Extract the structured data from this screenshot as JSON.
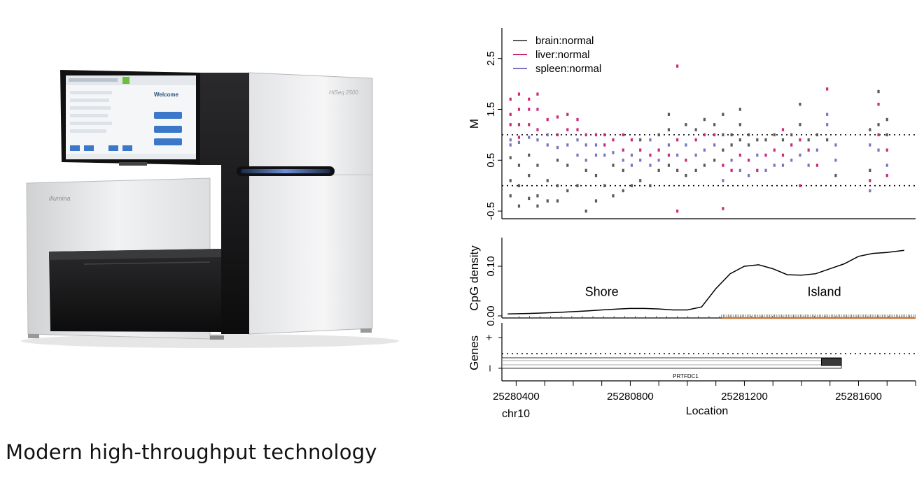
{
  "machine": {
    "brand": "illumina",
    "model": "HiSeq 2500",
    "screen_title": "Welcome"
  },
  "caption": "Modern high-throughput technology",
  "chart_data": [
    {
      "type": "scatter",
      "ylabel": "M",
      "xlim": [
        25280350,
        25281800
      ],
      "ylim": [
        -0.65,
        3.1
      ],
      "yticks": [
        "-0.5",
        "0.5",
        "1.5",
        "2.5"
      ],
      "ytick_values": [
        -0.5,
        0.5,
        1.5,
        2.5
      ],
      "hlines": [
        0.0,
        1.0
      ],
      "legend_position": "top-left",
      "series": [
        {
          "name": "brain:normal",
          "color": "#5a5a5a"
        },
        {
          "name": "liver:normal",
          "color": "#cc2a7a"
        },
        {
          "name": "spleen:normal",
          "color": "#7b74c0"
        }
      ],
      "points": [
        [
          25280380,
          -0.2,
          0
        ],
        [
          25280380,
          0.1,
          0
        ],
        [
          25280380,
          0.55,
          0
        ],
        [
          25280380,
          0.8,
          2
        ],
        [
          25280380,
          0.9,
          2
        ],
        [
          25280380,
          1.2,
          1
        ],
        [
          25280380,
          1.4,
          1
        ],
        [
          25280380,
          1.7,
          1
        ],
        [
          25280410,
          -0.4,
          0
        ],
        [
          25280410,
          0.0,
          0
        ],
        [
          25280410,
          0.4,
          0
        ],
        [
          25280410,
          0.85,
          2
        ],
        [
          25280410,
          0.95,
          1
        ],
        [
          25280410,
          1.2,
          1
        ],
        [
          25280410,
          1.5,
          1
        ],
        [
          25280410,
          1.8,
          1
        ],
        [
          25280445,
          -0.25,
          0
        ],
        [
          25280445,
          0.2,
          0
        ],
        [
          25280445,
          0.6,
          0
        ],
        [
          25280445,
          0.95,
          2
        ],
        [
          25280445,
          1.2,
          1
        ],
        [
          25280445,
          1.5,
          1
        ],
        [
          25280445,
          1.7,
          1
        ],
        [
          25280475,
          -0.4,
          0
        ],
        [
          25280475,
          -0.2,
          0
        ],
        [
          25280475,
          0.4,
          0
        ],
        [
          25280475,
          0.9,
          2
        ],
        [
          25280475,
          1.1,
          1
        ],
        [
          25280475,
          1.5,
          1
        ],
        [
          25280475,
          1.8,
          1
        ],
        [
          25280510,
          -0.3,
          0
        ],
        [
          25280510,
          0.1,
          0
        ],
        [
          25280510,
          0.8,
          2
        ],
        [
          25280510,
          1.0,
          2
        ],
        [
          25280510,
          1.3,
          1
        ],
        [
          25280545,
          -0.3,
          0
        ],
        [
          25280545,
          0.0,
          0
        ],
        [
          25280545,
          0.5,
          0
        ],
        [
          25280545,
          0.75,
          2
        ],
        [
          25280545,
          1.0,
          1
        ],
        [
          25280545,
          1.35,
          1
        ],
        [
          25280580,
          -0.1,
          0
        ],
        [
          25280580,
          0.4,
          0
        ],
        [
          25280580,
          0.8,
          2
        ],
        [
          25280580,
          1.1,
          1
        ],
        [
          25280580,
          1.4,
          1
        ],
        [
          25280615,
          0.0,
          0
        ],
        [
          25280615,
          0.6,
          2
        ],
        [
          25280615,
          0.9,
          2
        ],
        [
          25280615,
          1.1,
          1
        ],
        [
          25280615,
          1.3,
          1
        ],
        [
          25280645,
          -0.5,
          0
        ],
        [
          25280645,
          0.3,
          0
        ],
        [
          25280645,
          0.5,
          2
        ],
        [
          25280645,
          0.8,
          2
        ],
        [
          25280645,
          1.0,
          1
        ],
        [
          25280680,
          -0.3,
          0
        ],
        [
          25280680,
          0.2,
          0
        ],
        [
          25280680,
          0.6,
          2
        ],
        [
          25280680,
          0.8,
          2
        ],
        [
          25280680,
          1.0,
          1
        ],
        [
          25280710,
          0.0,
          0
        ],
        [
          25280710,
          0.6,
          2
        ],
        [
          25280710,
          0.8,
          1
        ],
        [
          25280710,
          1.0,
          1
        ],
        [
          25280740,
          -0.2,
          0
        ],
        [
          25280740,
          0.4,
          0
        ],
        [
          25280740,
          0.65,
          2
        ],
        [
          25280740,
          0.9,
          1
        ],
        [
          25280775,
          -0.1,
          0
        ],
        [
          25280775,
          0.3,
          0
        ],
        [
          25280775,
          0.5,
          2
        ],
        [
          25280775,
          0.7,
          1
        ],
        [
          25280775,
          1.0,
          1
        ],
        [
          25280805,
          0.0,
          0
        ],
        [
          25280805,
          0.4,
          2
        ],
        [
          25280805,
          0.6,
          2
        ],
        [
          25280805,
          0.9,
          1
        ],
        [
          25280835,
          0.1,
          0
        ],
        [
          25280835,
          0.5,
          2
        ],
        [
          25280835,
          0.7,
          1
        ],
        [
          25280835,
          0.9,
          0
        ],
        [
          25280870,
          0.0,
          0
        ],
        [
          25280870,
          0.4,
          2
        ],
        [
          25280870,
          0.6,
          1
        ],
        [
          25280870,
          0.9,
          2
        ],
        [
          25280900,
          0.3,
          0
        ],
        [
          25280900,
          0.5,
          2
        ],
        [
          25280900,
          0.7,
          1
        ],
        [
          25280900,
          1.0,
          0
        ],
        [
          25280935,
          0.4,
          0
        ],
        [
          25280935,
          0.6,
          1
        ],
        [
          25280935,
          0.8,
          2
        ],
        [
          25280935,
          1.1,
          0
        ],
        [
          25280935,
          1.4,
          0
        ],
        [
          25280965,
          -0.5,
          1
        ],
        [
          25280965,
          0.3,
          0
        ],
        [
          25280965,
          0.6,
          2
        ],
        [
          25280965,
          0.9,
          1
        ],
        [
          25280965,
          2.35,
          1
        ],
        [
          25280995,
          0.2,
          0
        ],
        [
          25280995,
          0.5,
          1
        ],
        [
          25280995,
          0.8,
          2
        ],
        [
          25280995,
          1.2,
          0
        ],
        [
          25281030,
          0.3,
          0
        ],
        [
          25281030,
          0.6,
          2
        ],
        [
          25281030,
          0.9,
          1
        ],
        [
          25281030,
          1.1,
          0
        ],
        [
          25281060,
          0.4,
          0
        ],
        [
          25281060,
          0.7,
          2
        ],
        [
          25281060,
          1.0,
          1
        ],
        [
          25281060,
          1.3,
          0
        ],
        [
          25281095,
          0.5,
          0
        ],
        [
          25281095,
          0.8,
          2
        ],
        [
          25281095,
          1.0,
          1
        ],
        [
          25281095,
          1.2,
          0
        ],
        [
          25281125,
          -0.45,
          1
        ],
        [
          25281125,
          0.1,
          2
        ],
        [
          25281125,
          0.4,
          1
        ],
        [
          25281125,
          0.7,
          0
        ],
        [
          25281125,
          1.0,
          0
        ],
        [
          25281125,
          1.4,
          0
        ],
        [
          25281155,
          0.3,
          1
        ],
        [
          25281155,
          0.5,
          2
        ],
        [
          25281155,
          0.8,
          0
        ],
        [
          25281155,
          1.0,
          0
        ],
        [
          25281185,
          0.3,
          2
        ],
        [
          25281185,
          0.6,
          1
        ],
        [
          25281185,
          0.9,
          0
        ],
        [
          25281185,
          1.2,
          0
        ],
        [
          25281185,
          1.5,
          0
        ],
        [
          25281215,
          0.2,
          2
        ],
        [
          25281215,
          0.5,
          1
        ],
        [
          25281215,
          0.8,
          0
        ],
        [
          25281215,
          1.0,
          0
        ],
        [
          25281245,
          0.3,
          1
        ],
        [
          25281245,
          0.6,
          2
        ],
        [
          25281245,
          0.9,
          0
        ],
        [
          25281275,
          0.3,
          2
        ],
        [
          25281275,
          0.6,
          1
        ],
        [
          25281275,
          0.9,
          0
        ],
        [
          25281305,
          0.4,
          2
        ],
        [
          25281305,
          0.7,
          1
        ],
        [
          25281305,
          1.0,
          0
        ],
        [
          25281335,
          0.4,
          2
        ],
        [
          25281335,
          0.6,
          1
        ],
        [
          25281335,
          0.9,
          0
        ],
        [
          25281335,
          1.1,
          1
        ],
        [
          25281365,
          0.5,
          2
        ],
        [
          25281365,
          0.8,
          1
        ],
        [
          25281365,
          1.0,
          0
        ],
        [
          25281395,
          0.0,
          1
        ],
        [
          25281395,
          0.6,
          2
        ],
        [
          25281395,
          0.9,
          1
        ],
        [
          25281395,
          1.2,
          0
        ],
        [
          25281395,
          1.6,
          0
        ],
        [
          25281425,
          0.4,
          2
        ],
        [
          25281425,
          0.7,
          1
        ],
        [
          25281425,
          0.9,
          0
        ],
        [
          25281455,
          0.4,
          1
        ],
        [
          25281455,
          0.7,
          2
        ],
        [
          25281455,
          1.0,
          0
        ],
        [
          25281490,
          0.9,
          0
        ],
        [
          25281490,
          1.2,
          2
        ],
        [
          25281490,
          1.4,
          2
        ],
        [
          25281490,
          1.9,
          1
        ],
        [
          25281520,
          0.2,
          0
        ],
        [
          25281520,
          0.5,
          2
        ],
        [
          25281520,
          0.8,
          2
        ],
        [
          25281640,
          -0.1,
          2
        ],
        [
          25281640,
          0.1,
          1
        ],
        [
          25281640,
          0.3,
          0
        ],
        [
          25281640,
          0.8,
          2
        ],
        [
          25281640,
          1.1,
          0
        ],
        [
          25281670,
          0.7,
          2
        ],
        [
          25281670,
          1.0,
          1
        ],
        [
          25281670,
          1.2,
          0
        ],
        [
          25281670,
          1.6,
          1
        ],
        [
          25281670,
          1.85,
          0
        ],
        [
          25281700,
          0.2,
          1
        ],
        [
          25281700,
          0.4,
          2
        ],
        [
          25281700,
          0.7,
          1
        ],
        [
          25281700,
          1.0,
          0
        ],
        [
          25281700,
          1.3,
          0
        ]
      ]
    },
    {
      "type": "line",
      "ylabel": "CpG density",
      "xlim": [
        25280350,
        25281800
      ],
      "ylim": [
        0.0,
        0.155
      ],
      "yticks": [
        "0.00",
        "0.10"
      ],
      "ytick_values": [
        0.0,
        0.1
      ],
      "annotations": [
        "Shore",
        "Island"
      ],
      "annotation_x": [
        25280700,
        25281480
      ],
      "annotation_y": [
        0.04,
        0.04
      ],
      "x": [
        25280370,
        25280450,
        25280550,
        25280650,
        25280700,
        25280760,
        25280800,
        25280850,
        25280900,
        25280950,
        25281000,
        25281050,
        25281100,
        25281150,
        25281200,
        25281250,
        25281300,
        25281350,
        25281400,
        25281450,
        25281500,
        25281550,
        25281600,
        25281650,
        25281700,
        25281760
      ],
      "values": [
        0.004,
        0.005,
        0.007,
        0.01,
        0.012,
        0.014,
        0.015,
        0.015,
        0.014,
        0.012,
        0.012,
        0.018,
        0.055,
        0.085,
        0.1,
        0.103,
        0.095,
        0.083,
        0.082,
        0.085,
        0.095,
        0.105,
        0.12,
        0.126,
        0.128,
        0.132
      ],
      "rug_start": 25281120,
      "rug_color": "#c8763a"
    },
    {
      "type": "gene-track",
      "ylabel": "Genes",
      "strand_labels": [
        "+",
        "–"
      ],
      "gene_name": "PRTFDC1",
      "gene_start": 25280350,
      "gene_end": 25281540,
      "exon_start": 25281470,
      "exon_end": 25281540,
      "xlabel": "Location",
      "chromosome": "chr10",
      "xticks": [
        "25280400",
        "25280800",
        "25281200",
        "25281600"
      ],
      "xtick_values": [
        25280400,
        25280800,
        25281200,
        25281600
      ],
      "xlim": [
        25280350,
        25281800
      ]
    }
  ]
}
